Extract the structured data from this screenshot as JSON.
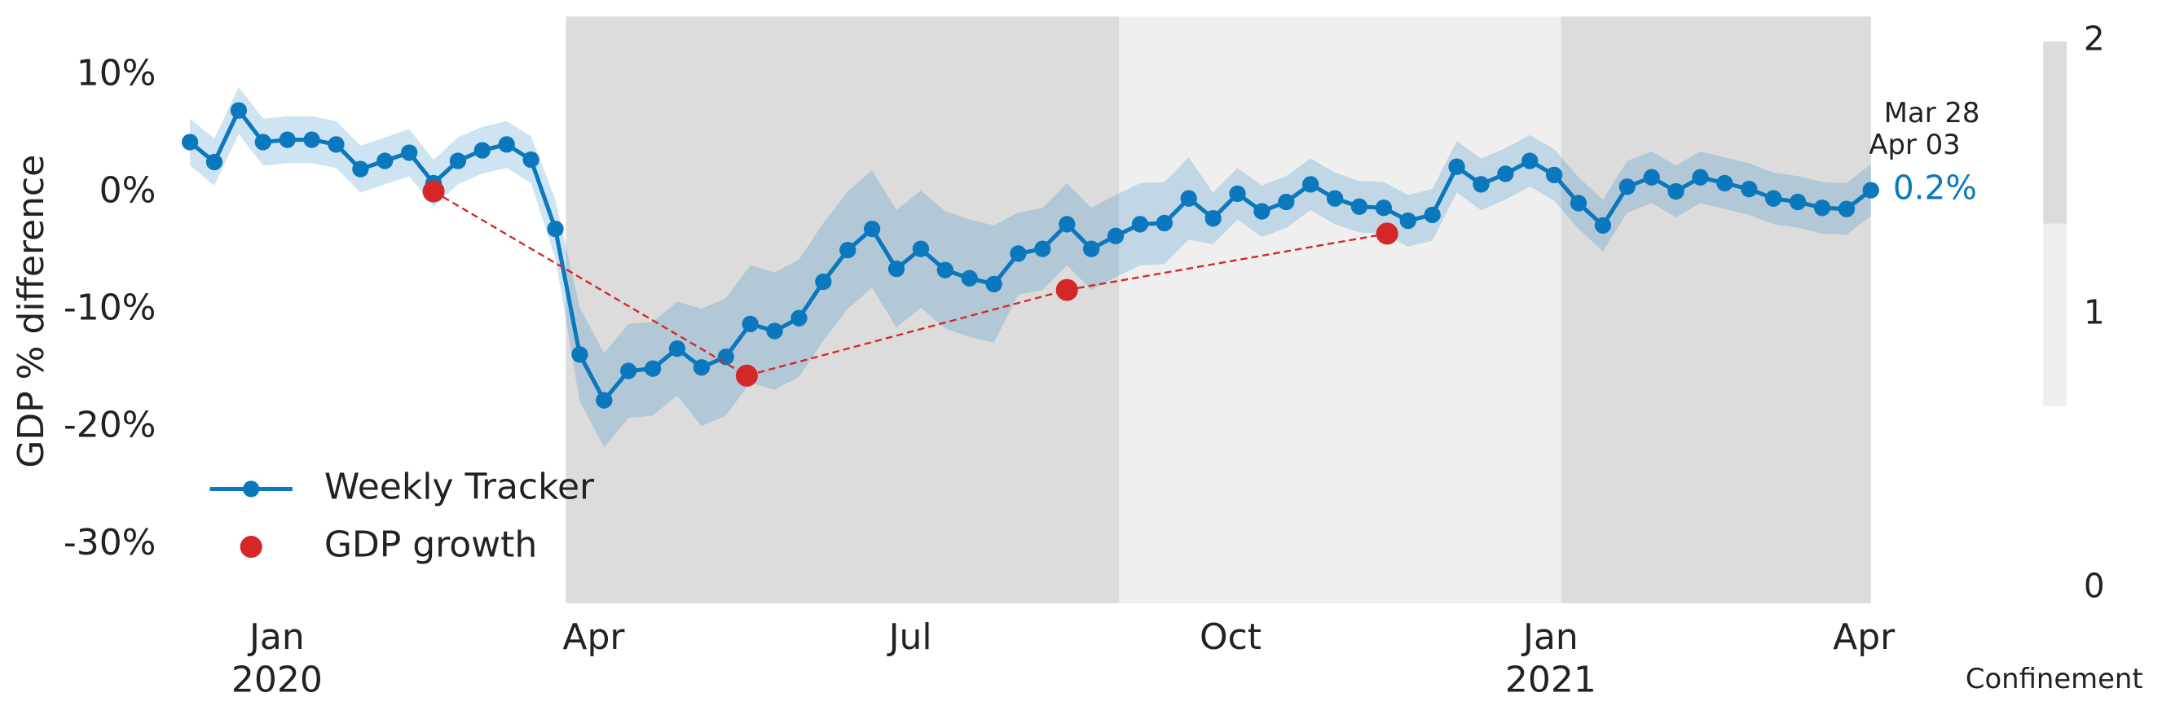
{
  "chart_data": {
    "type": "line",
    "y_label": "GDP % difference",
    "xlim": [
      "2019-12-02",
      "2021-04-03"
    ],
    "ylim": [
      -35,
      15
    ],
    "xticks": [
      {
        "value": "2020-01-01",
        "label": "Jan",
        "year_label": "2020"
      },
      {
        "value": "2020-04-01",
        "label": "Apr"
      },
      {
        "value": "2020-07-01",
        "label": "Jul"
      },
      {
        "value": "2020-10-01",
        "label": "Oct"
      },
      {
        "value": "2021-01-01",
        "label": "Jan",
        "year_label": "2021"
      },
      {
        "value": "2021-04-01",
        "label": "Apr"
      }
    ],
    "yticks": [
      {
        "value": 10,
        "label": "10%"
      },
      {
        "value": 0,
        "label": "0%"
      },
      {
        "value": -10,
        "label": "-10%"
      },
      {
        "value": -20,
        "label": "-20%"
      },
      {
        "value": -30,
        "label": "-30%"
      }
    ],
    "grid": false,
    "legend": "lower left",
    "series": [
      {
        "name": "Weekly Tracker",
        "color": "#0b78be",
        "style": "line-marker",
        "x": [
          "2019-12-07",
          "2019-12-14",
          "2019-12-21",
          "2019-12-28",
          "2020-01-04",
          "2020-01-11",
          "2020-01-18",
          "2020-01-25",
          "2020-02-01",
          "2020-02-08",
          "2020-02-15",
          "2020-02-22",
          "2020-02-29",
          "2020-03-07",
          "2020-03-14",
          "2020-03-21",
          "2020-03-28",
          "2020-04-04",
          "2020-04-11",
          "2020-04-18",
          "2020-04-25",
          "2020-05-02",
          "2020-05-09",
          "2020-05-16",
          "2020-05-23",
          "2020-05-30",
          "2020-06-06",
          "2020-06-13",
          "2020-06-20",
          "2020-06-27",
          "2020-07-04",
          "2020-07-11",
          "2020-07-18",
          "2020-07-25",
          "2020-08-01",
          "2020-08-08",
          "2020-08-15",
          "2020-08-22",
          "2020-08-29",
          "2020-09-05",
          "2020-09-12",
          "2020-09-19",
          "2020-09-26",
          "2020-10-03",
          "2020-10-10",
          "2020-10-17",
          "2020-10-24",
          "2020-10-31",
          "2020-11-07",
          "2020-11-14",
          "2020-11-21",
          "2020-11-28",
          "2020-12-05",
          "2020-12-12",
          "2020-12-19",
          "2020-12-26",
          "2021-01-02",
          "2021-01-09",
          "2021-01-16",
          "2021-01-23",
          "2021-01-30",
          "2021-02-06",
          "2021-02-13",
          "2021-02-20",
          "2021-02-27",
          "2021-03-06",
          "2021-03-13",
          "2021-03-20",
          "2021-03-27",
          "2021-04-03"
        ],
        "values": [
          4.3,
          2.6,
          7.0,
          4.3,
          4.5,
          4.5,
          4.1,
          2.0,
          2.7,
          3.4,
          0.8,
          2.7,
          3.6,
          4.1,
          2.8,
          -3.1,
          -13.8,
          -17.7,
          -15.2,
          -15.0,
          -13.3,
          -14.9,
          -14.0,
          -11.2,
          -11.8,
          -10.7,
          -7.6,
          -4.9,
          -3.1,
          -6.5,
          -4.8,
          -6.6,
          -7.3,
          -7.8,
          -5.2,
          -4.8,
          -2.7,
          -4.8,
          -3.7,
          -2.7,
          -2.6,
          -0.5,
          -2.2,
          -0.1,
          -1.6,
          -0.8,
          0.7,
          -0.5,
          -1.2,
          -1.3,
          -2.4,
          -1.9,
          2.2,
          0.7,
          1.6,
          2.7,
          1.5,
          -0.9,
          -2.8,
          0.5,
          1.3,
          0.1,
          1.3,
          0.8,
          0.3,
          -0.5,
          -0.8,
          -1.3,
          -1.4,
          0.2
        ],
        "ci": [
          2,
          2,
          2,
          2,
          2,
          2,
          2,
          2,
          2,
          2,
          2,
          2,
          2,
          2,
          2,
          2.5,
          4,
          4,
          4,
          4,
          4,
          5,
          5,
          5,
          5,
          5,
          5,
          5,
          5,
          5,
          5,
          5,
          5,
          5,
          3.5,
          3.5,
          3.5,
          3.5,
          3.5,
          3.5,
          3.5,
          3.5,
          2.2,
          2.2,
          2.2,
          2.2,
          2.2,
          2.2,
          2.2,
          2.2,
          2.2,
          2.2,
          2.2,
          2.2,
          2.2,
          2.2,
          2.2,
          2.2,
          2.2,
          2.2,
          2.2,
          2.2,
          2.2,
          2.2,
          2.2,
          2.2,
          2.2,
          2.2,
          2.2,
          2.2
        ],
        "value_labels": [
          null,
          null,
          null,
          null,
          null,
          null,
          null,
          null,
          null,
          null,
          null,
          null,
          null,
          null,
          null,
          null,
          null,
          null,
          null,
          null,
          null,
          null,
          null,
          null,
          null,
          null,
          null,
          null,
          null,
          null,
          null,
          null,
          null,
          null,
          null,
          null,
          null,
          null,
          null,
          null,
          null,
          null,
          null,
          null,
          null,
          null,
          null,
          null,
          null,
          null,
          null,
          null,
          null,
          null,
          null,
          null,
          null,
          null,
          null,
          null,
          null,
          null,
          null,
          null,
          null,
          null,
          null,
          null,
          null,
          "0.2%"
        ]
      },
      {
        "name": "GDP growth",
        "color": "#d62728",
        "style": "dashed-marker",
        "x": [
          "2020-02-15",
          "2020-05-15",
          "2020-08-15",
          "2020-11-15"
        ],
        "values": [
          0.1,
          -15.6,
          -8.3,
          -3.5
        ]
      }
    ],
    "annotations": [
      "Mar 28",
      "Apr 03"
    ],
    "confinement": [
      {
        "start": "2020-03-24",
        "end": "2020-08-30",
        "level": 2
      },
      {
        "start": "2020-08-30",
        "end": "2021-01-04",
        "level": 1
      },
      {
        "start": "2021-01-04",
        "end": "2021-04-03",
        "level": 2
      }
    ],
    "colorbar": {
      "label": "Confinement",
      "clim": [
        0,
        2
      ],
      "ticks": [
        0,
        1,
        2
      ],
      "level_colors": [
        "#ffffff",
        "#efefef",
        "#dcdcdc"
      ]
    }
  }
}
